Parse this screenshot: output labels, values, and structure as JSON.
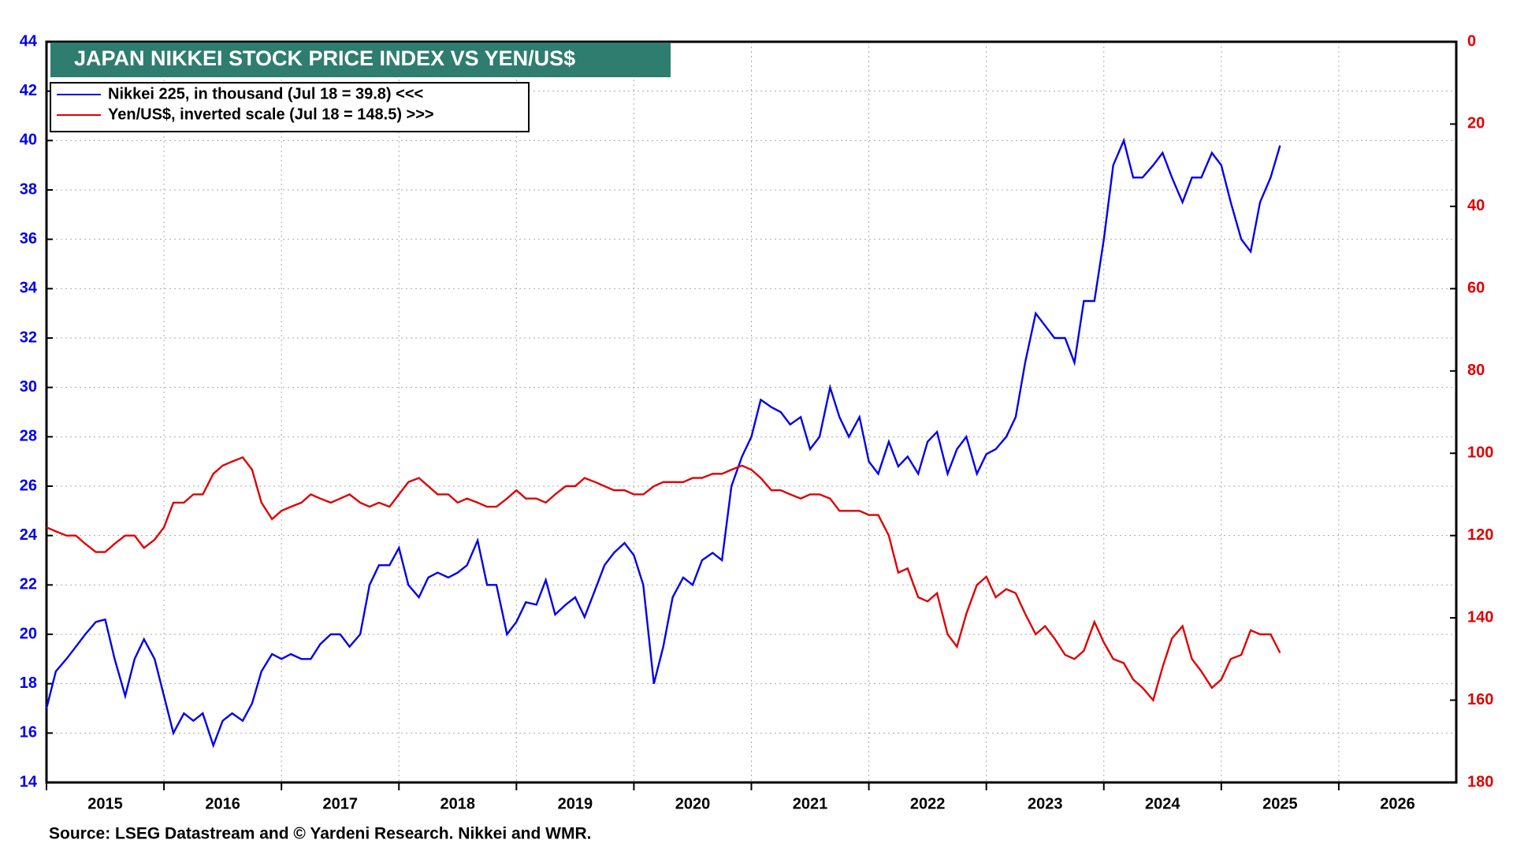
{
  "chart_data": {
    "type": "line",
    "title": "JAPAN NIKKEI STOCK PRICE INDEX VS YEN/US$",
    "source": "Source: LSEG Datastream and © Yardeni Research. Nikkei and WMR.",
    "x": [
      2015.0,
      2015.08,
      2015.17,
      2015.25,
      2015.33,
      2015.42,
      2015.5,
      2015.58,
      2015.67,
      2015.75,
      2015.83,
      2015.92,
      2016.0,
      2016.08,
      2016.17,
      2016.25,
      2016.33,
      2016.42,
      2016.5,
      2016.58,
      2016.67,
      2016.75,
      2016.83,
      2016.92,
      2017.0,
      2017.08,
      2017.17,
      2017.25,
      2017.33,
      2017.42,
      2017.5,
      2017.58,
      2017.67,
      2017.75,
      2017.83,
      2017.92,
      2018.0,
      2018.08,
      2018.17,
      2018.25,
      2018.33,
      2018.42,
      2018.5,
      2018.58,
      2018.67,
      2018.75,
      2018.83,
      2018.92,
      2019.0,
      2019.08,
      2019.17,
      2019.25,
      2019.33,
      2019.42,
      2019.5,
      2019.58,
      2019.67,
      2019.75,
      2019.83,
      2019.92,
      2020.0,
      2020.08,
      2020.17,
      2020.25,
      2020.33,
      2020.42,
      2020.5,
      2020.58,
      2020.67,
      2020.75,
      2020.83,
      2020.92,
      2021.0,
      2021.08,
      2021.17,
      2021.25,
      2021.33,
      2021.42,
      2021.5,
      2021.58,
      2021.67,
      2021.75,
      2021.83,
      2021.92,
      2022.0,
      2022.08,
      2022.17,
      2022.25,
      2022.33,
      2022.42,
      2022.5,
      2022.58,
      2022.67,
      2022.75,
      2022.83,
      2022.92,
      2023.0,
      2023.08,
      2023.17,
      2023.25,
      2023.33,
      2023.42,
      2023.5,
      2023.58,
      2023.67,
      2023.75,
      2023.83,
      2023.92,
      2024.0,
      2024.08,
      2024.17,
      2024.25,
      2024.33,
      2024.42,
      2024.5,
      2024.58,
      2024.67,
      2024.75,
      2024.83,
      2024.92,
      2025.0,
      2025.08,
      2025.17,
      2025.25,
      2025.33,
      2025.42,
      2025.5
    ],
    "series": [
      {
        "name": "Nikkei 225, in thousand (Jul 18 = 39.8) <<<",
        "color": "#0000ee",
        "values": [
          17.0,
          18.5,
          19.0,
          19.5,
          20.0,
          20.5,
          20.6,
          19.0,
          17.5,
          19.0,
          19.8,
          19.0,
          17.5,
          16.0,
          16.8,
          16.5,
          16.8,
          15.5,
          16.5,
          16.8,
          16.5,
          17.2,
          18.5,
          19.2,
          19.0,
          19.2,
          19.0,
          19.0,
          19.6,
          20.0,
          20.0,
          19.5,
          20.0,
          22.0,
          22.8,
          22.8,
          23.5,
          22.0,
          21.5,
          22.3,
          22.5,
          22.3,
          22.5,
          22.8,
          23.8,
          22.0,
          22.0,
          20.0,
          20.5,
          21.3,
          21.2,
          22.2,
          20.8,
          21.2,
          21.5,
          20.7,
          21.8,
          22.8,
          23.3,
          23.7,
          23.2,
          22.0,
          18.0,
          19.5,
          21.5,
          22.3,
          22.0,
          23.0,
          23.3,
          23.0,
          26.0,
          27.2,
          28.0,
          29.5,
          29.2,
          29.0,
          28.5,
          28.8,
          27.5,
          28.0,
          30.0,
          28.8,
          28.0,
          28.8,
          27.0,
          26.5,
          27.8,
          26.8,
          27.2,
          26.5,
          27.8,
          28.2,
          26.5,
          27.5,
          28.0,
          26.5,
          27.3,
          27.5,
          28.0,
          28.8,
          31.0,
          33.0,
          32.5,
          32.0,
          32.0,
          31.0,
          33.5,
          33.5,
          36.0,
          39.0,
          40.0,
          38.5,
          38.5,
          39.0,
          39.5,
          38.5,
          37.5,
          38.5,
          38.5,
          39.5,
          39.0,
          37.5,
          36.0,
          35.5,
          37.5,
          38.5,
          39.8
        ]
      },
      {
        "name": "Yen/US$, inverted scale (Jul 18 = 148.5) >>>",
        "color": "#e00000",
        "axis": "y2",
        "values": [
          118,
          119,
          120,
          120,
          122,
          124,
          124,
          122,
          120,
          120,
          123,
          121,
          118,
          112,
          112,
          110,
          110,
          105,
          103,
          102,
          101,
          104,
          112,
          116,
          114,
          113,
          112,
          110,
          111,
          112,
          111,
          110,
          112,
          113,
          112,
          113,
          110,
          107,
          106,
          108,
          110,
          110,
          112,
          111,
          112,
          113,
          113,
          111,
          109,
          111,
          111,
          112,
          110,
          108,
          108,
          106,
          107,
          108,
          109,
          109,
          110,
          110,
          108,
          107,
          107,
          107,
          106,
          106,
          105,
          105,
          104,
          103,
          104,
          106,
          109,
          109,
          110,
          111,
          110,
          110,
          111,
          114,
          114,
          114,
          115,
          115,
          120,
          129,
          128,
          135,
          136,
          134,
          144,
          147,
          139,
          132,
          130,
          135,
          133,
          134,
          139,
          144,
          142,
          145,
          149,
          150,
          148,
          141,
          146,
          150,
          151,
          155,
          157,
          160,
          152,
          145,
          142,
          150,
          153,
          157,
          155,
          150,
          149,
          143,
          144,
          144,
          148.5
        ]
      }
    ],
    "xlim": [
      2015,
      2027
    ],
    "xticks": [
      {
        "value": 2015,
        "label": "2015"
      },
      {
        "value": 2016,
        "label": "2016"
      },
      {
        "value": 2017,
        "label": "2017"
      },
      {
        "value": 2018,
        "label": "2018"
      },
      {
        "value": 2019,
        "label": "2019"
      },
      {
        "value": 2020,
        "label": "2020"
      },
      {
        "value": 2021,
        "label": "2021"
      },
      {
        "value": 2022,
        "label": "2022"
      },
      {
        "value": 2023,
        "label": "2023"
      },
      {
        "value": 2024,
        "label": "2024"
      },
      {
        "value": 2025,
        "label": "2025"
      },
      {
        "value": 2026,
        "label": "2026"
      }
    ],
    "ylim": [
      14,
      44
    ],
    "yticks": [
      14,
      16,
      18,
      20,
      22,
      24,
      26,
      28,
      30,
      32,
      34,
      36,
      38,
      40,
      42,
      44
    ],
    "y2lim": [
      180,
      0
    ],
    "y2ticks": [
      0,
      20,
      40,
      60,
      80,
      100,
      120,
      140,
      160,
      180
    ],
    "grid": true
  }
}
